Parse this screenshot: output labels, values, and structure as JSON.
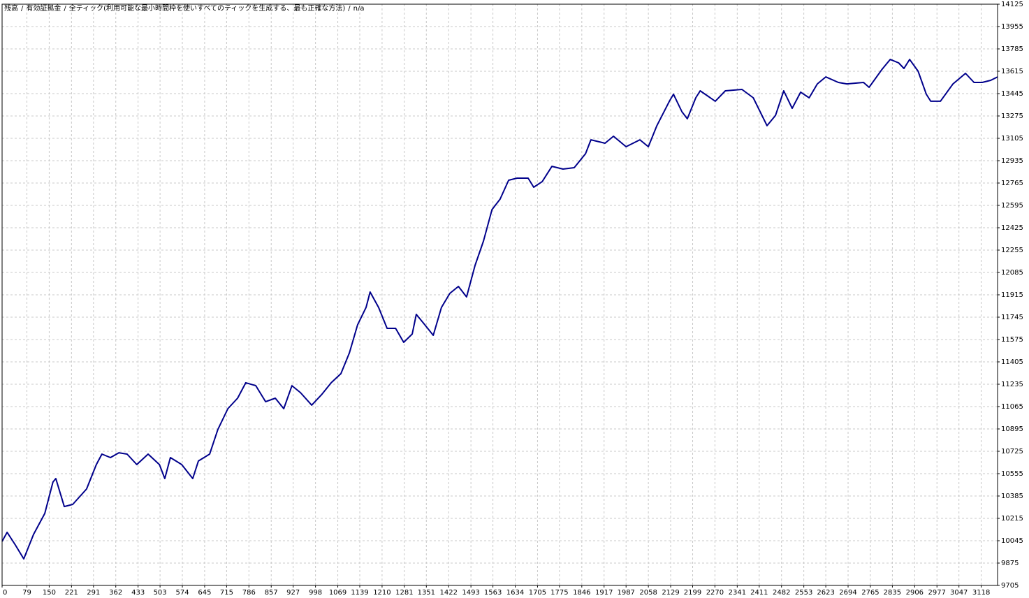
{
  "header": {
    "separator": "/",
    "items": [
      {
        "text": "残高",
        "color": "#000000"
      },
      {
        "text": "有効証拠金",
        "color": "#008000"
      },
      {
        "text": "全ティック(利用可能な最小時間枠を使いすべてのティックを生成する、最も正確な方法)",
        "color": "#000000"
      },
      {
        "text": "n/a",
        "color": "#000000"
      }
    ]
  },
  "chart_data": {
    "type": "line",
    "grid": true,
    "xlim": [
      0,
      3170
    ],
    "ylim": [
      9705,
      14125
    ],
    "xticks": [
      0,
      79,
      150,
      221,
      291,
      362,
      433,
      503,
      574,
      645,
      715,
      786,
      857,
      927,
      998,
      1069,
      1139,
      1210,
      1281,
      1351,
      1422,
      1493,
      1563,
      1634,
      1705,
      1775,
      1846,
      1917,
      1987,
      2058,
      2129,
      2199,
      2270,
      2341,
      2411,
      2482,
      2553,
      2623,
      2694,
      2765,
      2835,
      2906,
      2977,
      3047,
      3118
    ],
    "yticks": [
      9705,
      9875,
      10045,
      10215,
      10385,
      10555,
      10725,
      10895,
      11065,
      11235,
      11405,
      11575,
      11745,
      11915,
      12085,
      12255,
      12425,
      12595,
      12765,
      12935,
      13105,
      13275,
      13445,
      13615,
      13785,
      13955,
      14125
    ],
    "x": [
      0,
      16,
      42,
      69,
      100,
      136,
      162,
      171,
      198,
      225,
      269,
      300,
      318,
      345,
      372,
      398,
      429,
      465,
      501,
      518,
      536,
      572,
      607,
      625,
      661,
      687,
      719,
      750,
      776,
      808,
      839,
      870,
      897,
      923,
      950,
      986,
      1017,
      1048,
      1079,
      1106,
      1132,
      1159,
      1172,
      1199,
      1226,
      1253,
      1279,
      1306,
      1319,
      1346,
      1373,
      1399,
      1426,
      1453,
      1479,
      1506,
      1533,
      1560,
      1586,
      1613,
      1640,
      1675,
      1693,
      1720,
      1751,
      1786,
      1822,
      1858,
      1875,
      1920,
      1947,
      1987,
      2031,
      2058,
      2085,
      2125,
      2138,
      2165,
      2182,
      2209,
      2223,
      2271,
      2303,
      2356,
      2392,
      2436,
      2463,
      2489,
      2516,
      2543,
      2570,
      2596,
      2623,
      2663,
      2690,
      2743,
      2761,
      2801,
      2828,
      2855,
      2872,
      2890,
      2917,
      2943,
      2957,
      2988,
      3028,
      3068,
      3095,
      3121,
      3148,
      3170
    ],
    "series": [
      {
        "color": "#00008b",
        "values": [
          10040,
          10109,
          10013,
          9907,
          10093,
          10252,
          10491,
          10518,
          10305,
          10321,
          10438,
          10624,
          10704,
          10677,
          10714,
          10704,
          10624,
          10704,
          10624,
          10518,
          10677,
          10624,
          10518,
          10651,
          10704,
          10890,
          11049,
          11129,
          11246,
          11224,
          11102,
          11129,
          11049,
          11224,
          11171,
          11076,
          11155,
          11246,
          11315,
          11474,
          11687,
          11819,
          11936,
          11819,
          11660,
          11660,
          11554,
          11617,
          11766,
          11687,
          11607,
          11819,
          11926,
          11979,
          11899,
          12138,
          12324,
          12563,
          12643,
          12786,
          12802,
          12802,
          12733,
          12776,
          12892,
          12871,
          12882,
          12988,
          13094,
          13068,
          13121,
          13041,
          13094,
          13041,
          13201,
          13387,
          13440,
          13307,
          13254,
          13413,
          13466,
          13387,
          13466,
          13477,
          13413,
          13201,
          13280,
          13466,
          13333,
          13456,
          13413,
          13519,
          13572,
          13530,
          13519,
          13530,
          13493,
          13626,
          13705,
          13679,
          13636,
          13705,
          13615,
          13440,
          13387,
          13387,
          13519,
          13599,
          13530,
          13530,
          13546,
          13572
        ]
      }
    ]
  }
}
